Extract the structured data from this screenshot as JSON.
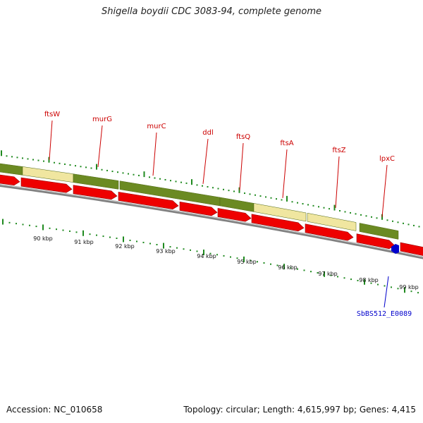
{
  "title": "Shigella boydii CDC 3083-94, complete genome",
  "footer": {
    "accession": "Accession: NC_010658",
    "summary": "Topology: circular; Length: 4,615,997 bp; Genes: 4,415"
  },
  "colors": {
    "gene_label": "#cc0000",
    "cds_red": "#ee0000",
    "gene_dark_green": "#6b8a22",
    "gene_light_yellow": "#f0e6a0",
    "tick_green": "#1f8a1f",
    "backbone_gray": "#808080",
    "feature_blue": "#0000cc"
  },
  "gene_labels": [
    "ftsW",
    "murG",
    "murC",
    "ddl",
    "ftsQ",
    "ftsA",
    "ftsZ",
    "lpxC"
  ],
  "kbp_labels": [
    "90 kbp",
    "91 kbp",
    "92 kbp",
    "93 kbp",
    "94 kbp",
    "95 kbp",
    "96 kbp",
    "97 kbp",
    "98 kbp",
    "99 kbp"
  ],
  "feature_label": "SbBS512_E0089"
}
